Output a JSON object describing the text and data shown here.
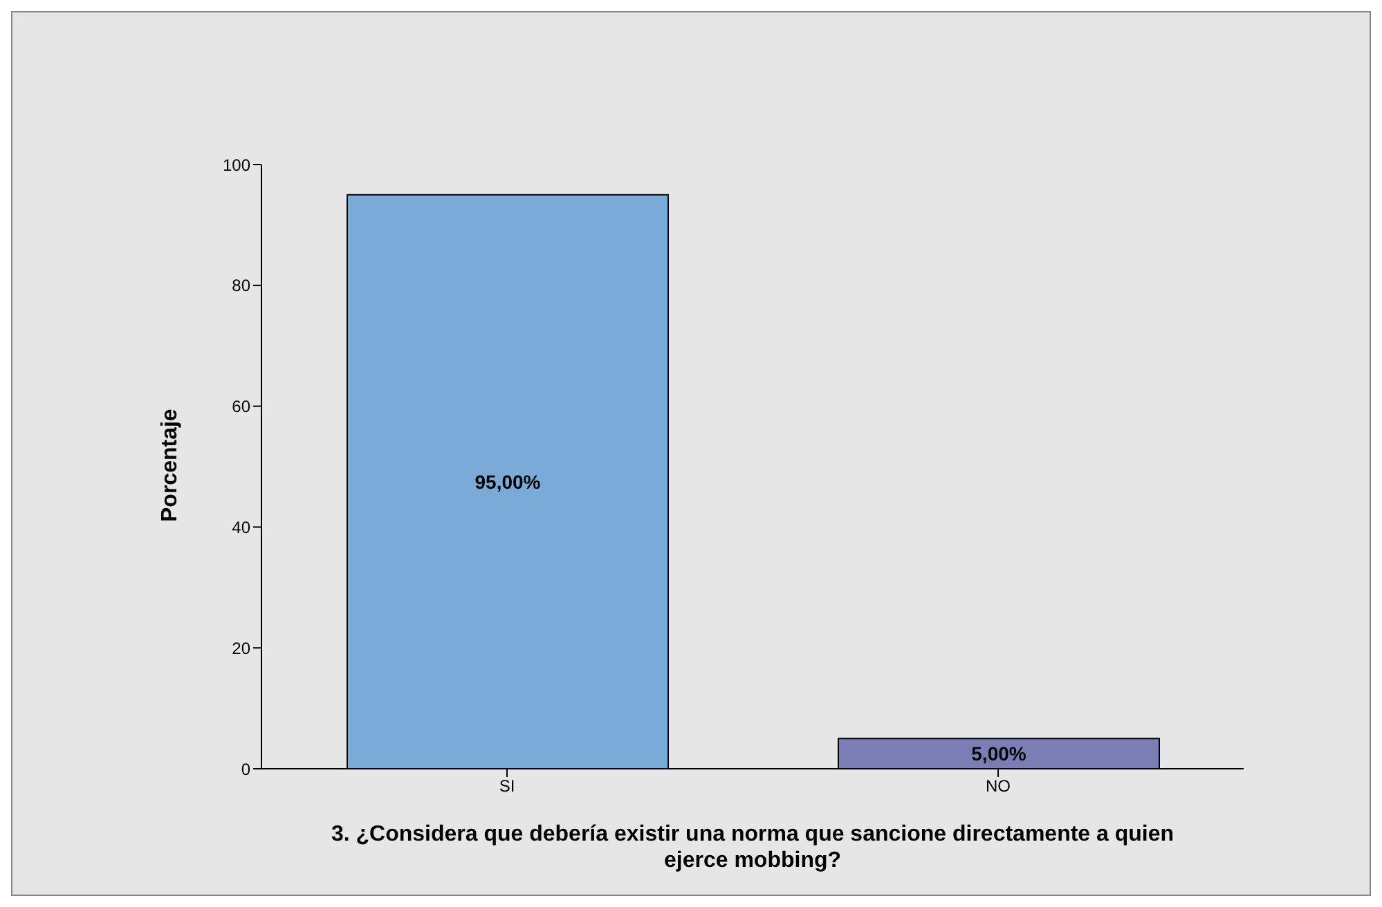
{
  "chart_data": {
    "type": "bar",
    "xlabel": "3. ¿Considera que debería existir una norma que sancione directamente a quien ejerce mobbing?",
    "ylabel": "Porcentaje",
    "categories": [
      "SI",
      "NO"
    ],
    "values": [
      95,
      5
    ],
    "colors": [
      "#7aaad8",
      "#7b7db5"
    ],
    "value_labels": [
      "95,00%",
      "5,00%"
    ],
    "ylim": [
      0,
      100
    ],
    "yticks": [
      0,
      20,
      40,
      60,
      80,
      100
    ],
    "grid": false
  }
}
